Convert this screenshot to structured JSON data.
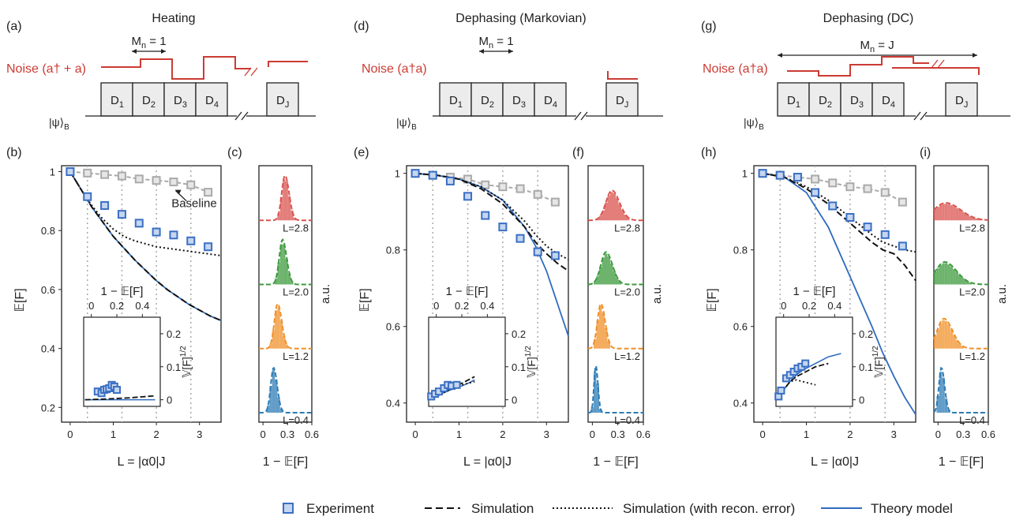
{
  "colors": {
    "experiment": "#3a6fc4",
    "theory": "#2f6bbf",
    "baseline": "#aaaaaa",
    "noise": "#cc3b33",
    "hist_red": "#d9534f",
    "hist_green": "#3c9a3c",
    "hist_orange": "#f0902a",
    "hist_blue": "#2c7bb6"
  },
  "panels": {
    "a": {
      "label": "(a)",
      "title": "Heating",
      "mn_label": "M",
      "mn_sub": "n",
      "mn_value": "= 1",
      "noise_label": "Noise (a† + a)",
      "state_label": "|ψ⟩",
      "state_sub": "B",
      "blocks": [
        "D1",
        "D2",
        "D3",
        "D4",
        "DJ"
      ]
    },
    "d": {
      "label": "(d)",
      "title": "Dephasing (Markovian)",
      "mn_label": "M",
      "mn_sub": "n",
      "mn_value": "= 1",
      "noise_label": "Noise (a†a)",
      "state_label": "|ψ⟩",
      "state_sub": "B",
      "blocks": [
        "D1",
        "D2",
        "D3",
        "D4",
        "DJ"
      ]
    },
    "g": {
      "label": "(g)",
      "title": "Dephasing (DC)",
      "mn_label": "M",
      "mn_sub": "n",
      "mn_value": "= J",
      "noise_label": "Noise (a†a)",
      "state_label": "|ψ⟩",
      "state_sub": "B",
      "blocks": [
        "D1",
        "D2",
        "D3",
        "D4",
        "DJ"
      ]
    },
    "b": {
      "label": "(b)"
    },
    "c": {
      "label": "(c)"
    },
    "e": {
      "label": "(e)"
    },
    "f": {
      "label": "(f)"
    },
    "h": {
      "label": "(h)"
    },
    "i": {
      "label": "(i)"
    }
  },
  "axes": {
    "main_xlabel": "L = |α0|J",
    "main_ylabel": "𝔼[F]",
    "hist_xlabel": "1 − 𝔼[F]",
    "hist_ylabel": "a.u.",
    "inset_xlabel": "1 − 𝔼[F]",
    "inset_ylabel": "𝕍[F]",
    "inset_ylabel_sup": "1/2",
    "baseline_annotation": "Baseline",
    "hist_L_labels": [
      "L=2.8",
      "L=2.0",
      "L=1.2",
      "L=0.4"
    ]
  },
  "legend": {
    "experiment": "Experiment",
    "simulation": "Simulation",
    "simulation_recon": "Simulation (with recon. error)",
    "theory": "Theory model"
  },
  "chart_data": [
    {
      "panel": "b",
      "type": "line",
      "xlim": [
        -0.2,
        3.5
      ],
      "ylim": [
        0.15,
        1.02
      ],
      "xticks": [
        0,
        1,
        2,
        3
      ],
      "yticks": [
        0.2,
        0.4,
        0.6,
        0.8,
        1
      ],
      "ytick_labels": [
        "0.2",
        "0.4",
        "0.6",
        "0.8",
        "1"
      ],
      "vlines": [
        0.4,
        1.2,
        2.0,
        2.8
      ],
      "experiment": {
        "x": [
          0,
          0.4,
          0.8,
          1.2,
          1.6,
          2.0,
          2.4,
          2.8,
          3.2
        ],
        "y": [
          1.0,
          0.915,
          0.885,
          0.855,
          0.825,
          0.795,
          0.785,
          0.765,
          0.745
        ]
      },
      "baseline": {
        "x": [
          0,
          0.4,
          0.8,
          1.2,
          1.6,
          2.0,
          2.4,
          2.8,
          3.2
        ],
        "y": [
          1.0,
          0.995,
          0.99,
          0.985,
          0.975,
          0.97,
          0.965,
          0.955,
          0.93
        ]
      },
      "simulation": {
        "x": [
          0,
          0.25,
          0.5,
          0.75,
          1.0,
          1.25,
          1.5,
          1.75,
          2.0,
          2.25,
          2.5,
          2.75,
          3.0,
          3.25,
          3.5
        ],
        "y": [
          1.0,
          0.94,
          0.88,
          0.83,
          0.78,
          0.74,
          0.7,
          0.665,
          0.63,
          0.6,
          0.575,
          0.55,
          0.53,
          0.51,
          0.495
        ]
      },
      "simulation_recon": {
        "x": [
          0,
          0.25,
          0.5,
          0.75,
          1.0,
          1.25,
          1.5,
          1.75,
          2.0,
          2.5,
          3.0,
          3.5
        ],
        "y": [
          1.0,
          0.94,
          0.885,
          0.84,
          0.805,
          0.78,
          0.765,
          0.755,
          0.745,
          0.735,
          0.725,
          0.715
        ]
      },
      "theory": {
        "x": [
          0,
          0.25,
          0.5,
          0.75,
          1.0,
          1.25,
          1.5,
          1.75,
          2.0,
          2.25,
          2.5,
          2.75,
          3.0,
          3.25,
          3.5
        ],
        "y": [
          1.0,
          0.94,
          0.88,
          0.83,
          0.78,
          0.74,
          0.7,
          0.665,
          0.63,
          0.6,
          0.575,
          0.55,
          0.53,
          0.51,
          0.495
        ]
      },
      "inset": {
        "xlim": [
          -0.06,
          0.54
        ],
        "ylim": [
          -0.02,
          0.25
        ],
        "xticks": [
          0,
          0.2,
          0.4
        ],
        "xtick_labels": [
          "0",
          "0.2",
          "0.4"
        ],
        "yticks": [
          0,
          0.1,
          0.2
        ],
        "ytick_labels": [
          "0",
          "0.1",
          "0.2"
        ],
        "experiment": {
          "x": [
            0.05,
            0.08,
            0.1,
            0.12,
            0.14,
            0.16,
            0.18,
            0.2
          ],
          "y": [
            0.025,
            0.02,
            0.03,
            0.032,
            0.035,
            0.045,
            0.04,
            0.03
          ]
        },
        "simulation": {
          "x": [
            -0.05,
            0.1,
            0.2,
            0.3,
            0.4,
            0.5
          ],
          "y": [
            0.0,
            0.002,
            0.004,
            0.006,
            0.009,
            0.012
          ]
        },
        "theory": {
          "x": [
            -0.05,
            0.1,
            0.2,
            0.3,
            0.4,
            0.5
          ],
          "y": [
            0.0,
            0.0,
            0.0,
            0.0,
            0.0,
            0.0
          ]
        }
      }
    },
    {
      "panel": "e",
      "type": "line",
      "xlim": [
        -0.2,
        3.5
      ],
      "ylim": [
        0.35,
        1.02
      ],
      "xticks": [
        0,
        1,
        2,
        3
      ],
      "yticks": [
        0.4,
        0.6,
        0.8,
        1
      ],
      "ytick_labels": [
        "0.4",
        "0.6",
        "0.8",
        "1"
      ],
      "vlines": [
        0.4,
        1.2,
        2.0,
        2.8
      ],
      "experiment": {
        "x": [
          0,
          0.4,
          0.8,
          1.2,
          1.6,
          2.0,
          2.4,
          2.8,
          3.2
        ],
        "y": [
          1.0,
          0.995,
          0.98,
          0.94,
          0.89,
          0.86,
          0.83,
          0.795,
          0.785
        ]
      },
      "baseline": {
        "x": [
          0,
          0.4,
          0.8,
          1.2,
          1.6,
          2.0,
          2.4,
          2.8,
          3.2
        ],
        "y": [
          1.0,
          0.995,
          0.99,
          0.985,
          0.97,
          0.965,
          0.96,
          0.945,
          0.925
        ]
      },
      "simulation": {
        "x": [
          0,
          0.5,
          1.0,
          1.5,
          2.0,
          2.5,
          2.75,
          3.0,
          3.25,
          3.5
        ],
        "y": [
          1.0,
          0.995,
          0.985,
          0.96,
          0.92,
          0.86,
          0.82,
          0.79,
          0.765,
          0.745
        ]
      },
      "simulation_recon": {
        "x": [
          0,
          0.5,
          1.0,
          1.5,
          2.0,
          2.5,
          2.75,
          3.0,
          3.25,
          3.5
        ],
        "y": [
          1.0,
          0.995,
          0.985,
          0.965,
          0.93,
          0.875,
          0.84,
          0.81,
          0.79,
          0.775
        ]
      },
      "theory": {
        "x": [
          0,
          0.5,
          1.0,
          1.5,
          2.0,
          2.5,
          2.75,
          3.0,
          3.25,
          3.5
        ],
        "y": [
          1.0,
          0.995,
          0.985,
          0.965,
          0.93,
          0.86,
          0.81,
          0.745,
          0.66,
          0.575
        ]
      },
      "inset": {
        "xlim": [
          -0.06,
          0.54
        ],
        "ylim": [
          -0.02,
          0.25
        ],
        "xticks": [
          0,
          0.2,
          0.4
        ],
        "xtick_labels": [
          "0",
          "0.2",
          "0.4"
        ],
        "yticks": [
          0,
          0.1,
          0.2
        ],
        "ytick_labels": [
          "0",
          "0.1",
          "0.2"
        ],
        "experiment": {
          "x": [
            -0.04,
            -0.01,
            0.02,
            0.06,
            0.09,
            0.12,
            0.16
          ],
          "y": [
            0.01,
            0.018,
            0.025,
            0.035,
            0.045,
            0.042,
            0.045
          ]
        },
        "simulation": {
          "x": [
            -0.05,
            0.0,
            0.05,
            0.1,
            0.15,
            0.2,
            0.25,
            0.3
          ],
          "y": [
            0.0,
            0.01,
            0.02,
            0.03,
            0.04,
            0.05,
            0.06,
            0.07
          ]
        },
        "simulation_recon": {
          "x": [
            -0.05,
            0.0,
            0.05,
            0.1,
            0.15,
            0.2,
            0.25,
            0.3
          ],
          "y": [
            0.0,
            0.01,
            0.02,
            0.03,
            0.04,
            0.045,
            0.05,
            0.055
          ]
        },
        "theory": {
          "x": [
            -0.05,
            0.0,
            0.05,
            0.1,
            0.15,
            0.2,
            0.25,
            0.3
          ],
          "y": [
            0.0,
            0.01,
            0.02,
            0.028,
            0.035,
            0.042,
            0.05,
            0.06
          ]
        }
      }
    },
    {
      "panel": "h",
      "type": "line",
      "xlim": [
        -0.2,
        3.5
      ],
      "ylim": [
        0.35,
        1.02
      ],
      "xticks": [
        0,
        1,
        2,
        3
      ],
      "yticks": [
        0.4,
        0.6,
        0.8,
        1
      ],
      "ytick_labels": [
        "0.4",
        "0.6",
        "0.8",
        "1"
      ],
      "vlines": [
        0.4,
        1.2,
        2.0,
        2.8
      ],
      "experiment": {
        "x": [
          0,
          0.4,
          0.8,
          1.2,
          1.6,
          2.0,
          2.4,
          2.8,
          3.2
        ],
        "y": [
          1.0,
          0.995,
          0.99,
          0.95,
          0.915,
          0.885,
          0.86,
          0.84,
          0.81
        ]
      },
      "baseline": {
        "x": [
          0,
          0.4,
          0.8,
          1.2,
          1.6,
          2.0,
          2.4,
          2.8,
          3.2
        ],
        "y": [
          1.0,
          0.995,
          0.99,
          0.985,
          0.975,
          0.965,
          0.96,
          0.95,
          0.925
        ]
      },
      "simulation": {
        "x": [
          0,
          0.5,
          1.0,
          1.5,
          2.0,
          2.5,
          2.75,
          3.0,
          3.25,
          3.5
        ],
        "y": [
          1.0,
          0.99,
          0.96,
          0.92,
          0.87,
          0.82,
          0.8,
          0.79,
          0.76,
          0.72
        ]
      },
      "simulation_recon": {
        "x": [
          0,
          0.5,
          1.0,
          1.5,
          2.0,
          2.5,
          2.75,
          3.0,
          3.25,
          3.5
        ],
        "y": [
          1.0,
          0.99,
          0.965,
          0.93,
          0.885,
          0.84,
          0.82,
          0.81,
          0.8,
          0.795
        ]
      },
      "theory": {
        "x": [
          0,
          0.5,
          1.0,
          1.5,
          2.0,
          2.5,
          2.75,
          3.0,
          3.25,
          3.5
        ],
        "y": [
          1.0,
          0.99,
          0.95,
          0.86,
          0.73,
          0.6,
          0.53,
          0.47,
          0.415,
          0.37
        ]
      },
      "inset": {
        "xlim": [
          -0.06,
          0.54
        ],
        "ylim": [
          -0.02,
          0.25
        ],
        "xticks": [
          0,
          0.2,
          0.4
        ],
        "xtick_labels": [
          "0",
          "0.2",
          "0.4"
        ],
        "yticks": [
          0,
          0.1,
          0.2
        ],
        "ytick_labels": [
          "0",
          "0.1",
          "0.2"
        ],
        "experiment": {
          "x": [
            -0.04,
            -0.02,
            0.02,
            0.05,
            0.08,
            0.11,
            0.14,
            0.17
          ],
          "y": [
            0.01,
            0.028,
            0.065,
            0.075,
            0.085,
            0.095,
            0.1,
            0.11
          ]
        },
        "simulation": {
          "x": [
            -0.05,
            0.0,
            0.05,
            0.1,
            0.15,
            0.2,
            0.25,
            0.3,
            0.35
          ],
          "y": [
            0.0,
            0.03,
            0.055,
            0.07,
            0.08,
            0.09,
            0.1,
            0.105,
            0.11
          ]
        },
        "simulation_recon": {
          "x": [
            -0.05,
            0.0,
            0.05,
            0.1,
            0.15,
            0.2,
            0.25
          ],
          "y": [
            0.0,
            0.03,
            0.055,
            0.06,
            0.055,
            0.05,
            0.045
          ]
        },
        "theory": {
          "x": [
            -0.05,
            0.0,
            0.05,
            0.1,
            0.15,
            0.2,
            0.25,
            0.3,
            0.35,
            0.4,
            0.45
          ],
          "y": [
            0.0,
            0.03,
            0.055,
            0.075,
            0.09,
            0.1,
            0.11,
            0.12,
            0.13,
            0.135,
            0.14
          ]
        }
      }
    },
    {
      "panel": "c",
      "type": "histogram",
      "xlim": [
        -0.05,
        0.6
      ],
      "xticks": [
        0,
        0.3,
        0.6
      ],
      "xtick_labels": [
        "0",
        "0.3",
        "0.6"
      ],
      "rows": [
        {
          "L": "L=2.8",
          "color_key": "hist_red",
          "peak": 0.27,
          "width": 0.04,
          "height": 0.9
        },
        {
          "L": "L=2.0",
          "color_key": "hist_green",
          "peak": 0.24,
          "width": 0.04,
          "height": 0.9
        },
        {
          "L": "L=1.2",
          "color_key": "hist_orange",
          "peak": 0.18,
          "width": 0.04,
          "height": 0.9
        },
        {
          "L": "L=0.4",
          "color_key": "hist_blue",
          "peak": 0.13,
          "width": 0.035,
          "height": 0.9
        }
      ]
    },
    {
      "panel": "f",
      "type": "histogram",
      "xlim": [
        -0.05,
        0.6
      ],
      "xticks": [
        0,
        0.3,
        0.6
      ],
      "xtick_labels": [
        "0",
        "0.3",
        "0.6"
      ],
      "rows": [
        {
          "L": "L=2.8",
          "color_key": "hist_red",
          "peak": 0.23,
          "width": 0.07,
          "height": 0.6
        },
        {
          "L": "L=2.0",
          "color_key": "hist_green",
          "peak": 0.16,
          "width": 0.06,
          "height": 0.65
        },
        {
          "L": "L=1.2",
          "color_key": "hist_orange",
          "peak": 0.1,
          "width": 0.04,
          "height": 0.9
        },
        {
          "L": "L=0.4",
          "color_key": "hist_blue",
          "peak": 0.04,
          "width": 0.02,
          "height": 0.95
        }
      ]
    },
    {
      "panel": "i",
      "type": "histogram",
      "xlim": [
        -0.05,
        0.6
      ],
      "xticks": [
        0,
        0.3,
        0.6
      ],
      "xtick_labels": [
        "0",
        "0.3",
        "0.6"
      ],
      "rows": [
        {
          "L": "L=2.8",
          "color_key": "hist_red",
          "peak": 0.09,
          "width": 0.14,
          "height": 0.35
        },
        {
          "L": "L=2.0",
          "color_key": "hist_green",
          "peak": 0.08,
          "width": 0.11,
          "height": 0.45
        },
        {
          "L": "L=1.2",
          "color_key": "hist_orange",
          "peak": 0.07,
          "width": 0.08,
          "height": 0.6
        },
        {
          "L": "L=0.4",
          "color_key": "hist_blue",
          "peak": 0.04,
          "width": 0.03,
          "height": 0.9
        }
      ]
    }
  ]
}
